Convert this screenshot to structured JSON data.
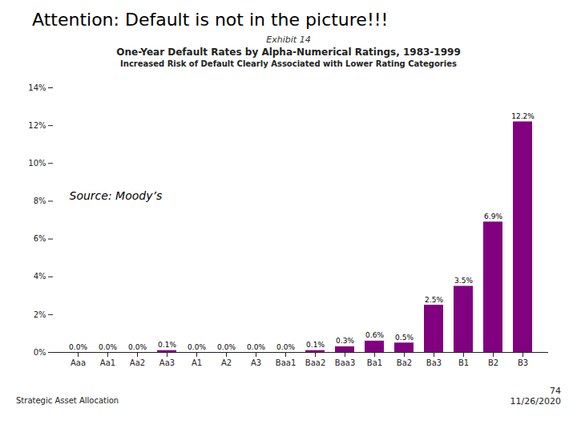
{
  "chart_data": {
    "type": "bar",
    "title": "Attention: Default is not in the picture!!!",
    "subtitle": [
      "One-Year Default Rates by Alpha-Numerical Ratings, 1983-1999",
      "Increased Risk of Default Clearly Associated with Lower Rating Categories"
    ],
    "annotations": [
      "Exhibit 14",
      "Source: Moody’s",
      "Strategic Asset Allocation",
      "74",
      "11/26/2020"
    ],
    "categories": [
      "Aaa",
      "Aa1",
      "Aa2",
      "Aa3",
      "A1",
      "A2",
      "A3",
      "Baa1",
      "Baa2",
      "Baa3",
      "Ba1",
      "Ba2",
      "Ba3",
      "B1",
      "B2",
      "B3"
    ],
    "values": [
      0.0,
      0.0,
      0.0,
      0.1,
      0.0,
      0.0,
      0.0,
      0.0,
      0.1,
      0.3,
      0.6,
      0.5,
      2.5,
      3.5,
      6.9,
      12.2
    ],
    "value_labels": [
      "0.0%",
      "0.0%",
      "0.0%",
      "0.1%",
      "0.0%",
      "0.0%",
      "0.0%",
      "0.0%",
      "0.1%",
      "0.3%",
      "0.6%",
      "0.5%",
      "2.5%",
      "3.5%",
      "6.9%",
      "12.2%"
    ],
    "data_labels": true,
    "color": "#800080",
    "ylim": [
      0,
      14
    ],
    "yticks": [
      {
        "value": 0,
        "label": "0%"
      },
      {
        "value": 2,
        "label": "2%"
      },
      {
        "value": 4,
        "label": "4%"
      },
      {
        "value": 6,
        "label": "6%"
      },
      {
        "value": 8,
        "label": "8%"
      },
      {
        "value": 10,
        "label": "10%"
      },
      {
        "value": 12,
        "label": "12%"
      },
      {
        "value": 14,
        "label": "14%"
      }
    ],
    "grid": false
  }
}
